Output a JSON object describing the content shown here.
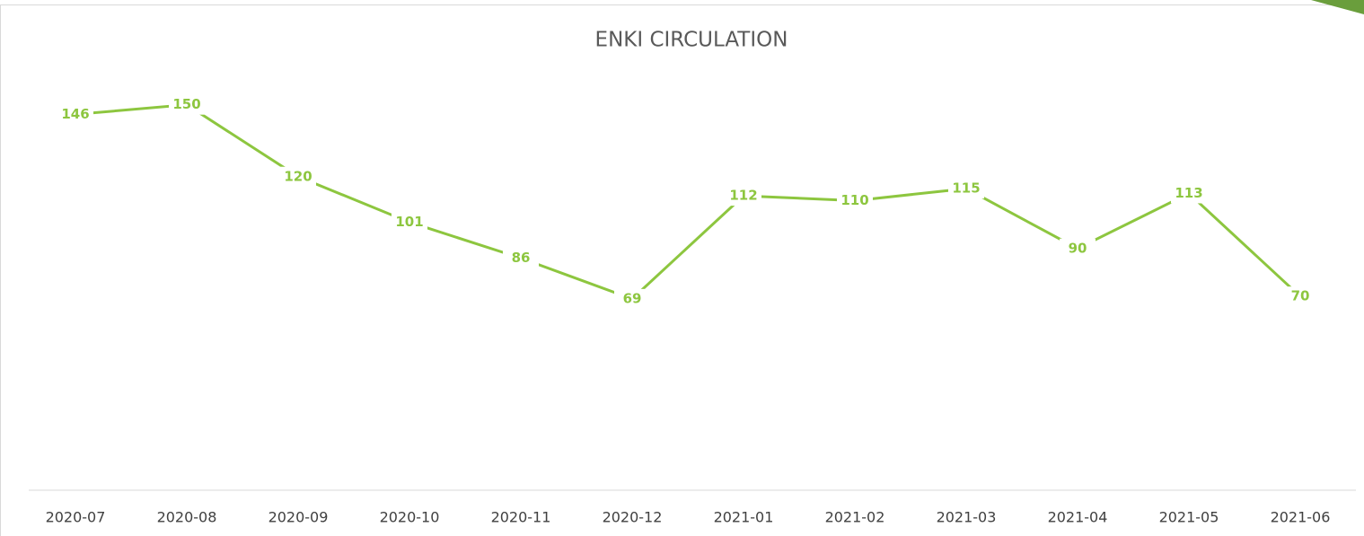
{
  "chart_data": {
    "type": "line",
    "title": "ENKI CIRCULATION",
    "categories": [
      "2020-07",
      "2020-08",
      "2020-09",
      "2020-10",
      "2020-11",
      "2020-12",
      "2021-01",
      "2021-02",
      "2021-03",
      "2021-04",
      "2021-05",
      "2021-06"
    ],
    "series": [
      {
        "name": "Circulation",
        "color": "#8dc63f",
        "values": [
          146,
          150,
          120,
          101,
          86,
          69,
          112,
          110,
          115,
          90,
          113,
          70
        ]
      }
    ],
    "ylim": [
      0,
      160
    ]
  }
}
